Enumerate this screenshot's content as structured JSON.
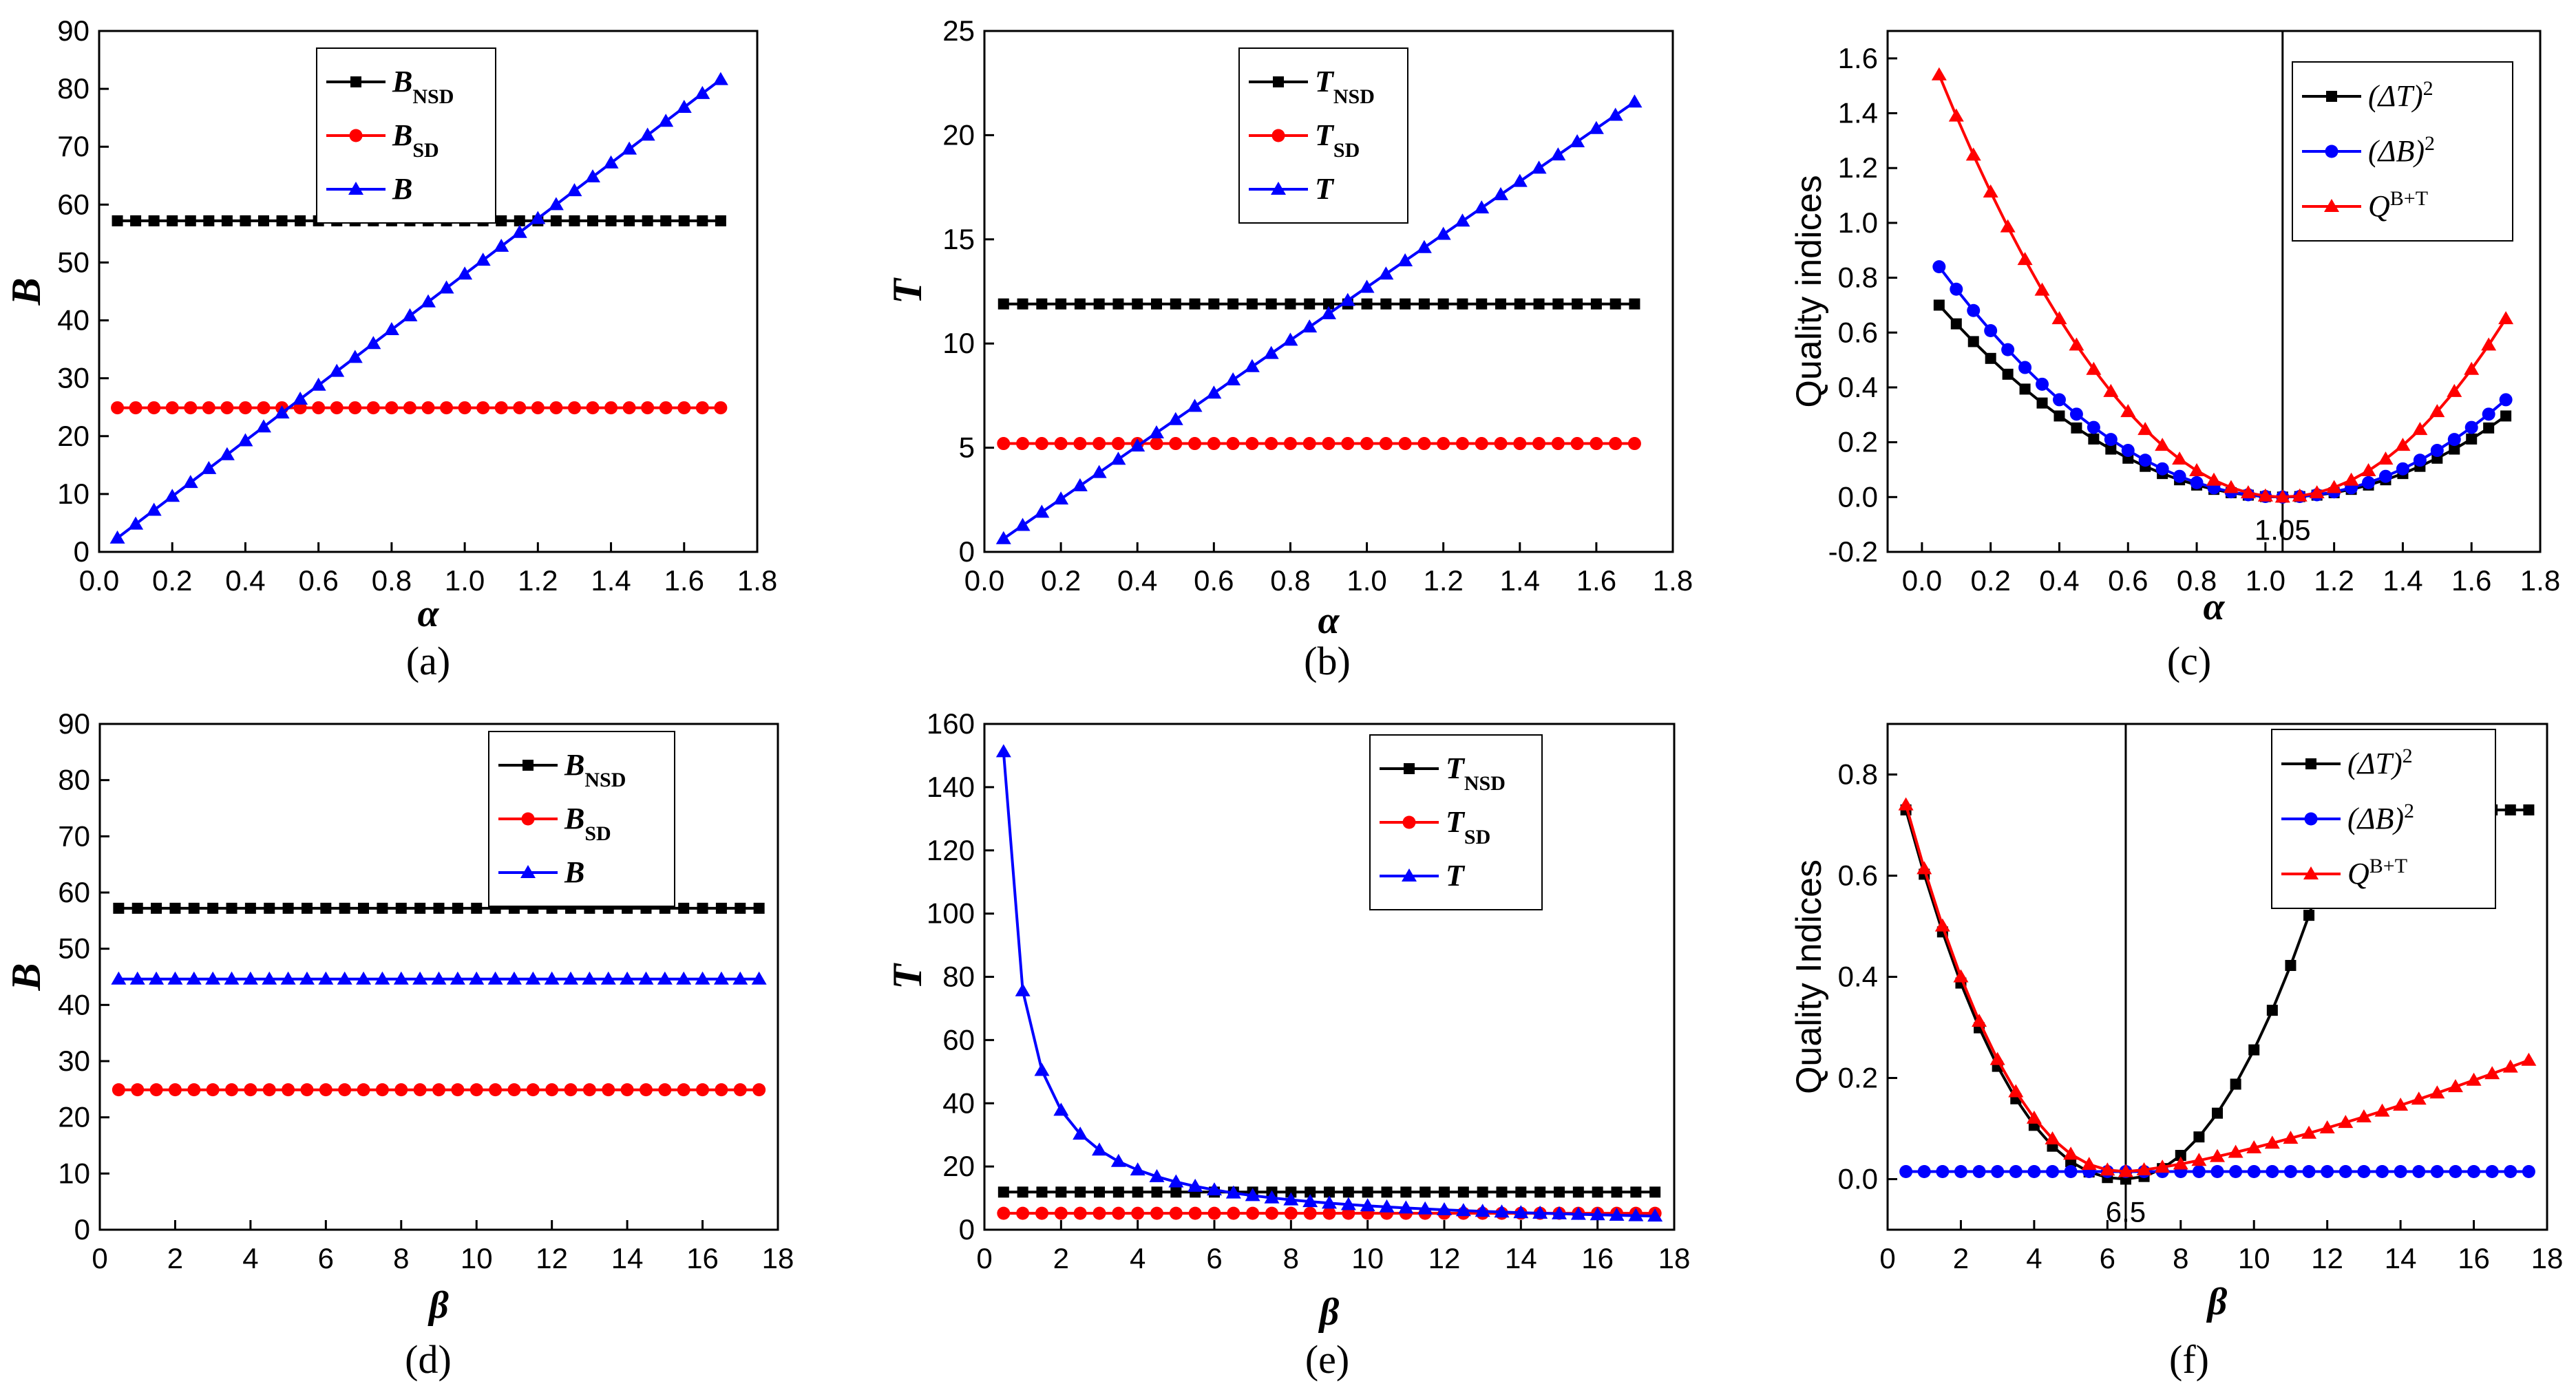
{
  "chart_data": [
    {
      "id": "a",
      "caption": "(a)",
      "type": "line",
      "xlabel": "α",
      "ylabel": "B",
      "ylabel_style": "math",
      "xlim": [
        0,
        1.8
      ],
      "ylim": [
        0,
        90
      ],
      "xticks": [
        "0.0",
        "0.2",
        "0.4",
        "0.6",
        "0.8",
        "1.0",
        "1.2",
        "1.4",
        "1.6",
        "1.8"
      ],
      "yticks": [
        "0",
        "10",
        "20",
        "30",
        "40",
        "50",
        "60",
        "70",
        "80",
        "90"
      ],
      "legend": {
        "position": "top-center"
      },
      "series": [
        {
          "name": "B",
          "sub": "NSD",
          "color": "#000000",
          "marker": "square",
          "kind": "constant",
          "x_range": [
            0.05,
            1.7
          ],
          "count": 34,
          "value": 57.2
        },
        {
          "name": "B",
          "sub": "SD",
          "color": "#ff0000",
          "marker": "circle",
          "kind": "constant",
          "x_range": [
            0.05,
            1.7
          ],
          "count": 34,
          "value": 24.9
        },
        {
          "name": "B",
          "sub": "",
          "color": "#0000ff",
          "marker": "triangle",
          "kind": "linear",
          "x_range": [
            0.05,
            1.7
          ],
          "count": 34,
          "slope": 48.0,
          "intercept": 0
        }
      ]
    },
    {
      "id": "b",
      "caption": "(b)",
      "type": "line",
      "xlabel": "α",
      "ylabel": "T",
      "ylabel_style": "math",
      "xlim": [
        0,
        1.8
      ],
      "ylim": [
        0,
        25
      ],
      "xticks": [
        "0.0",
        "0.2",
        "0.4",
        "0.6",
        "0.8",
        "1.0",
        "1.2",
        "1.4",
        "1.6",
        "1.8"
      ],
      "yticks": [
        "0",
        "5",
        "10",
        "15",
        "20",
        "25"
      ],
      "legend": {
        "position": "top-center"
      },
      "series": [
        {
          "name": "T",
          "sub": "NSD",
          "color": "#000000",
          "marker": "square",
          "kind": "constant",
          "x_range": [
            0.05,
            1.7
          ],
          "count": 34,
          "value": 11.9
        },
        {
          "name": "T",
          "sub": "SD",
          "color": "#ff0000",
          "marker": "circle",
          "kind": "constant",
          "x_range": [
            0.05,
            1.7
          ],
          "count": 34,
          "value": 5.2
        },
        {
          "name": "T",
          "sub": "",
          "color": "#0000ff",
          "marker": "triangle",
          "kind": "linear",
          "x_range": [
            0.05,
            1.7
          ],
          "count": 34,
          "slope": 12.7,
          "intercept": 0
        }
      ]
    },
    {
      "id": "c",
      "caption": "(c)",
      "type": "line",
      "xlabel": "α",
      "ylabel": "Quality indices",
      "ylabel_style": "plain",
      "xlim": [
        -0.1,
        1.8
      ],
      "ylim": [
        -0.2,
        1.7
      ],
      "xticks": [
        "0.0",
        "0.2",
        "0.4",
        "0.6",
        "0.8",
        "1.0",
        "1.2",
        "1.4",
        "1.6",
        "1.8"
      ],
      "yticks": [
        "-0.2",
        "0.0",
        "0.2",
        "0.4",
        "0.6",
        "0.8",
        "1.0",
        "1.2",
        "1.4",
        "1.6"
      ],
      "vline": {
        "x": 1.05,
        "label": "1.05"
      },
      "legend": {
        "position": "top-right"
      },
      "series": [
        {
          "name": "(ΔT)",
          "sup": "2",
          "color": "#000000",
          "marker": "square",
          "kind": "quad",
          "x_range": [
            0.05,
            1.7
          ],
          "count": 34,
          "center": 1.05,
          "coef": 0.7
        },
        {
          "name": "(ΔB)",
          "sup": "2",
          "color": "#0000ff",
          "marker": "circle",
          "kind": "quad",
          "x_range": [
            0.05,
            1.7
          ],
          "count": 34,
          "center": 1.05,
          "coef": 0.84
        },
        {
          "name": "Q",
          "sup": "B+T",
          "color": "#ff0000",
          "marker": "triangle",
          "kind": "quad",
          "x_range": [
            0.05,
            1.7
          ],
          "count": 34,
          "center": 1.05,
          "coef": 1.54
        }
      ]
    },
    {
      "id": "d",
      "caption": "(d)",
      "type": "line",
      "xlabel": "β",
      "ylabel": "B",
      "ylabel_style": "math",
      "xlim": [
        0,
        18
      ],
      "ylim": [
        0,
        90
      ],
      "xticks": [
        "0",
        "2",
        "4",
        "6",
        "8",
        "10",
        "12",
        "14",
        "16",
        "18"
      ],
      "yticks": [
        "0",
        "10",
        "20",
        "30",
        "40",
        "50",
        "60",
        "70",
        "80",
        "90"
      ],
      "legend": {
        "position": "top-right"
      },
      "series": [
        {
          "name": "B",
          "sub": "NSD",
          "color": "#000000",
          "marker": "square",
          "kind": "constant",
          "x_range": [
            0.5,
            17.5
          ],
          "count": 35,
          "value": 57.2
        },
        {
          "name": "B",
          "sub": "SD",
          "color": "#ff0000",
          "marker": "circle",
          "kind": "constant",
          "x_range": [
            0.5,
            17.5
          ],
          "count": 35,
          "value": 24.9
        },
        {
          "name": "B",
          "sub": "",
          "color": "#0000ff",
          "marker": "triangle",
          "kind": "constant",
          "x_range": [
            0.5,
            17.5
          ],
          "count": 35,
          "value": 44.6
        }
      ]
    },
    {
      "id": "e",
      "caption": "(e)",
      "type": "line",
      "xlabel": "β",
      "ylabel": "T",
      "ylabel_style": "math",
      "xlim": [
        0,
        18
      ],
      "ylim": [
        0,
        160
      ],
      "xticks": [
        "0",
        "2",
        "4",
        "6",
        "8",
        "10",
        "12",
        "14",
        "16",
        "18"
      ],
      "yticks": [
        "0",
        "20",
        "40",
        "60",
        "80",
        "100",
        "120",
        "140",
        "160"
      ],
      "legend": {
        "position": "top-right"
      },
      "series": [
        {
          "name": "T",
          "sub": "NSD",
          "color": "#000000",
          "marker": "square",
          "kind": "constant",
          "x_range": [
            0.5,
            17.5
          ],
          "count": 35,
          "value": 11.9
        },
        {
          "name": "T",
          "sub": "SD",
          "color": "#ff0000",
          "marker": "circle",
          "kind": "constant",
          "x_range": [
            0.5,
            17.5
          ],
          "count": 35,
          "value": 5.2
        },
        {
          "name": "T",
          "sub": "",
          "color": "#0000ff",
          "marker": "triangle",
          "kind": "inverse",
          "x_range": [
            0.5,
            17.5
          ],
          "count": 35,
          "k": 75.6
        }
      ]
    },
    {
      "id": "f",
      "caption": "(f)",
      "type": "line",
      "xlabel": "β",
      "ylabel": "Quality Indices",
      "ylabel_style": "plain",
      "xlim": [
        0,
        18
      ],
      "ylim": [
        -0.1,
        0.9
      ],
      "xticks": [
        "0",
        "2",
        "4",
        "6",
        "8",
        "10",
        "12",
        "14",
        "16",
        "18"
      ],
      "yticks": [
        "0.0",
        "0.2",
        "0.4",
        "0.6",
        "0.8"
      ],
      "vline": {
        "x": 6.5,
        "label": "6.5"
      },
      "legend": {
        "position": "top-right"
      },
      "series": [
        {
          "name": "(ΔT)",
          "sup": "2",
          "color": "#000000",
          "marker": "square",
          "kind": "recip",
          "x_range": [
            0.5,
            17.5
          ],
          "count": 35,
          "a": 6.5
        },
        {
          "name": "(ΔB)",
          "sup": "2",
          "color": "#0000ff",
          "marker": "circle",
          "kind": "constant",
          "x_range": [
            0.5,
            17.5
          ],
          "count": 35,
          "value": 0.015
        },
        {
          "name": "Q",
          "sup": "B+T",
          "color": "#ff0000",
          "marker": "triangle",
          "kind": "recip_plus",
          "x_range": [
            0.5,
            17.5
          ],
          "count": 35,
          "a": 6.5,
          "offset": 0.015
        }
      ]
    }
  ]
}
